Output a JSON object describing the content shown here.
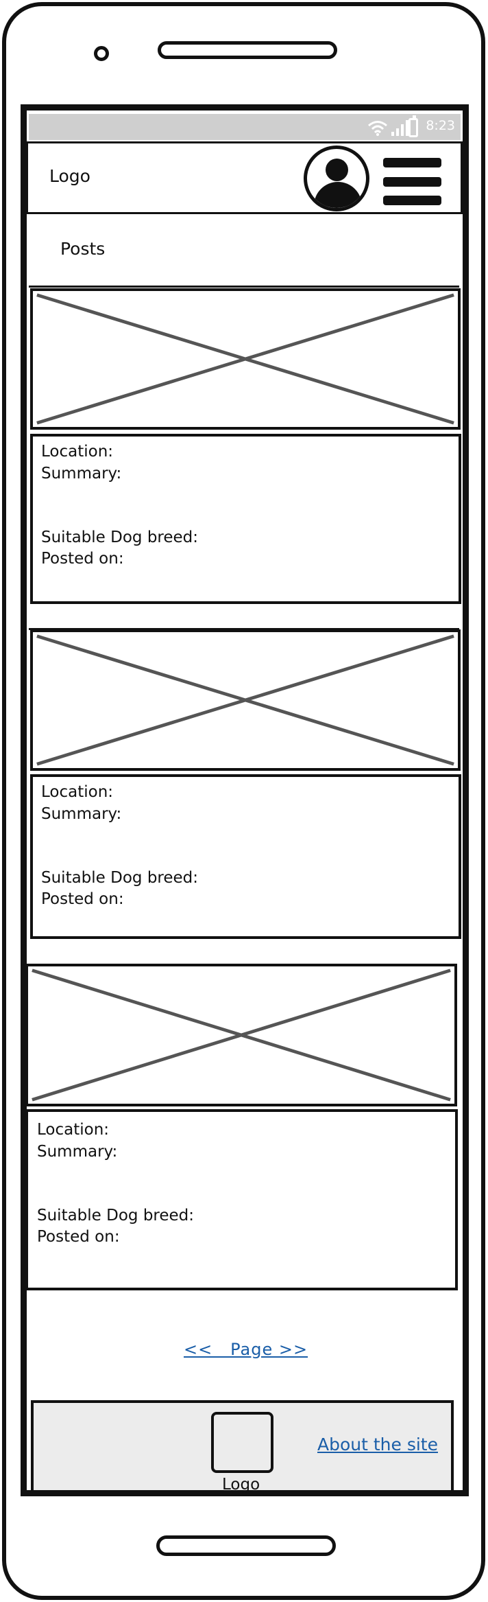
{
  "status_bar": {
    "time": "8:23",
    "icons": [
      "wifi-icon",
      "signal-icon",
      "battery-icon"
    ],
    "background": "#cfcfcf"
  },
  "header": {
    "logo": "Logo",
    "icons": [
      "avatar-icon",
      "hamburger-menu-icon"
    ]
  },
  "page": {
    "title": "Posts"
  },
  "posts": [
    {
      "image_icon": "image-placeholder-icon",
      "location_label": "Location:",
      "summary_label": "Summary:",
      "breed_label": "Suitable Dog breed:",
      "posted_label": "Posted on:"
    },
    {
      "image_icon": "image-placeholder-icon",
      "location_label": "Location:",
      "summary_label": "Summary:",
      "breed_label": "Suitable Dog breed:",
      "posted_label": "Posted on:"
    },
    {
      "image_icon": "image-placeholder-icon",
      "location_label": "Location:",
      "summary_label": "Summary:",
      "breed_label": "Suitable Dog breed:",
      "posted_label": "Posted on:"
    }
  ],
  "pagination": {
    "label": "<<   Page >>"
  },
  "footer": {
    "logo": "Logo",
    "link": "About the site",
    "background": "#ececec",
    "link_color": "#1a5ea8"
  }
}
